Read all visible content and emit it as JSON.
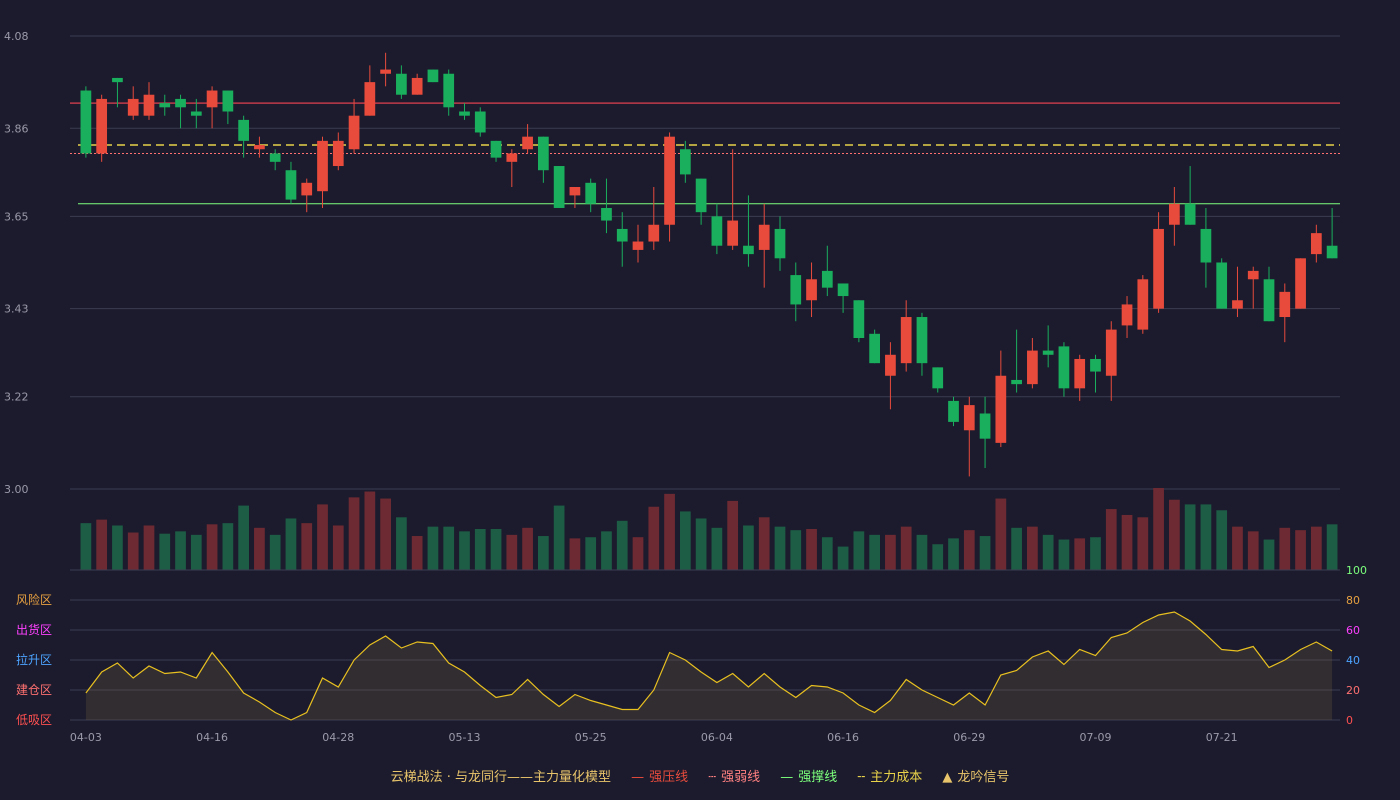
{
  "chart_data": {
    "type": "candlestick",
    "x_ticks": [
      "04-03",
      "04-16",
      "04-28",
      "05-13",
      "05-25",
      "06-04",
      "06-16",
      "06-29",
      "07-09",
      "07-21"
    ],
    "y_ticks": [
      "4.08",
      "3.86",
      "3.65",
      "3.43",
      "3.22",
      "3.00"
    ],
    "ylim": [
      3.0,
      4.08
    ],
    "candles": [
      [
        3.95,
        3.8,
        3.96,
        3.79
      ],
      [
        3.8,
        3.93,
        3.94,
        3.78
      ],
      [
        3.98,
        3.97,
        3.98,
        3.91
      ],
      [
        3.89,
        3.93,
        3.96,
        3.88
      ],
      [
        3.89,
        3.94,
        3.97,
        3.88
      ],
      [
        3.92,
        3.91,
        3.94,
        3.89
      ],
      [
        3.93,
        3.91,
        3.94,
        3.86
      ],
      [
        3.9,
        3.89,
        3.93,
        3.86
      ],
      [
        3.91,
        3.95,
        3.96,
        3.86
      ],
      [
        3.95,
        3.9,
        3.95,
        3.87
      ],
      [
        3.88,
        3.83,
        3.89,
        3.79
      ],
      [
        3.81,
        3.82,
        3.84,
        3.79
      ],
      [
        3.8,
        3.78,
        3.81,
        3.76
      ],
      [
        3.76,
        3.69,
        3.78,
        3.68
      ],
      [
        3.7,
        3.73,
        3.74,
        3.66
      ],
      [
        3.71,
        3.83,
        3.84,
        3.67
      ],
      [
        3.77,
        3.83,
        3.85,
        3.76
      ],
      [
        3.81,
        3.89,
        3.93,
        3.8
      ],
      [
        3.89,
        3.97,
        4.01,
        3.89
      ],
      [
        3.99,
        4.0,
        4.04,
        3.96
      ],
      [
        3.99,
        3.94,
        4.01,
        3.93
      ],
      [
        3.94,
        3.98,
        3.99,
        3.94
      ],
      [
        4.0,
        3.97,
        4.0,
        3.97
      ],
      [
        3.99,
        3.91,
        4.0,
        3.89
      ],
      [
        3.9,
        3.89,
        3.92,
        3.88
      ],
      [
        3.9,
        3.85,
        3.91,
        3.84
      ],
      [
        3.83,
        3.79,
        3.83,
        3.78
      ],
      [
        3.78,
        3.8,
        3.81,
        3.72
      ],
      [
        3.81,
        3.84,
        3.87,
        3.8
      ],
      [
        3.84,
        3.76,
        3.84,
        3.73
      ],
      [
        3.77,
        3.67,
        3.77,
        3.67
      ],
      [
        3.7,
        3.72,
        3.72,
        3.67
      ],
      [
        3.73,
        3.68,
        3.74,
        3.66
      ],
      [
        3.67,
        3.64,
        3.74,
        3.61
      ],
      [
        3.62,
        3.59,
        3.66,
        3.53
      ],
      [
        3.57,
        3.59,
        3.63,
        3.54
      ],
      [
        3.59,
        3.63,
        3.72,
        3.57
      ],
      [
        3.63,
        3.84,
        3.85,
        3.59
      ],
      [
        3.81,
        3.75,
        3.83,
        3.73
      ],
      [
        3.74,
        3.66,
        3.74,
        3.63
      ],
      [
        3.65,
        3.58,
        3.68,
        3.56
      ],
      [
        3.58,
        3.64,
        3.81,
        3.57
      ],
      [
        3.58,
        3.56,
        3.7,
        3.53
      ],
      [
        3.57,
        3.63,
        3.68,
        3.48
      ],
      [
        3.62,
        3.55,
        3.65,
        3.52
      ],
      [
        3.51,
        3.44,
        3.54,
        3.4
      ],
      [
        3.45,
        3.5,
        3.54,
        3.41
      ],
      [
        3.52,
        3.48,
        3.58,
        3.46
      ],
      [
        3.49,
        3.46,
        3.49,
        3.42
      ],
      [
        3.45,
        3.36,
        3.45,
        3.35
      ],
      [
        3.37,
        3.3,
        3.38,
        3.3
      ],
      [
        3.27,
        3.32,
        3.35,
        3.19
      ],
      [
        3.3,
        3.41,
        3.45,
        3.28
      ],
      [
        3.41,
        3.3,
        3.42,
        3.27
      ],
      [
        3.29,
        3.24,
        3.29,
        3.23
      ],
      [
        3.21,
        3.16,
        3.22,
        3.15
      ],
      [
        3.14,
        3.2,
        3.22,
        3.03
      ],
      [
        3.18,
        3.12,
        3.22,
        3.05
      ],
      [
        3.11,
        3.27,
        3.33,
        3.1
      ],
      [
        3.26,
        3.25,
        3.38,
        3.23
      ],
      [
        3.25,
        3.33,
        3.36,
        3.24
      ],
      [
        3.33,
        3.32,
        3.39,
        3.29
      ],
      [
        3.34,
        3.24,
        3.35,
        3.22
      ],
      [
        3.24,
        3.31,
        3.32,
        3.21
      ],
      [
        3.31,
        3.28,
        3.32,
        3.23
      ],
      [
        3.27,
        3.38,
        3.4,
        3.21
      ],
      [
        3.39,
        3.44,
        3.46,
        3.36
      ],
      [
        3.38,
        3.5,
        3.51,
        3.37
      ],
      [
        3.43,
        3.62,
        3.66,
        3.42
      ],
      [
        3.63,
        3.68,
        3.72,
        3.58
      ],
      [
        3.68,
        3.63,
        3.77,
        3.63
      ],
      [
        3.62,
        3.54,
        3.67,
        3.48
      ],
      [
        3.54,
        3.43,
        3.55,
        3.43
      ],
      [
        3.43,
        3.45,
        3.53,
        3.41
      ],
      [
        3.5,
        3.52,
        3.53,
        3.43
      ],
      [
        3.5,
        3.4,
        3.53,
        3.4
      ],
      [
        3.41,
        3.47,
        3.49,
        3.35
      ],
      [
        3.43,
        3.55,
        3.55,
        3.43
      ],
      [
        3.56,
        3.61,
        3.63,
        3.54
      ],
      [
        3.58,
        3.55,
        3.67,
        3.55
      ]
    ],
    "volumes": [
      40,
      43,
      38,
      32,
      38,
      31,
      33,
      30,
      39,
      40,
      55,
      36,
      30,
      44,
      40,
      56,
      38,
      62,
      67,
      61,
      45,
      29,
      37,
      37,
      33,
      35,
      35,
      30,
      36,
      29,
      55,
      27,
      28,
      33,
      42,
      28,
      54,
      65,
      50,
      44,
      36,
      59,
      38,
      45,
      37,
      34,
      35,
      28,
      20,
      33,
      30,
      30,
      37,
      30,
      22,
      27,
      34,
      29,
      61,
      36,
      37,
      30,
      26,
      27,
      28,
      52,
      47,
      45,
      70,
      60,
      56,
      56,
      51,
      37,
      33,
      26,
      36,
      34,
      37,
      39
    ],
    "signal_line": [
      18,
      32,
      38,
      28,
      36,
      31,
      32,
      28,
      45,
      32,
      18,
      12,
      5,
      0,
      5,
      28,
      22,
      40,
      50,
      56,
      48,
      52,
      51,
      38,
      32,
      23,
      15,
      17,
      27,
      17,
      9,
      17,
      13,
      10,
      7,
      7,
      20,
      45,
      40,
      32,
      25,
      31,
      22,
      31,
      22,
      15,
      23,
      22,
      18,
      10,
      5,
      13,
      27,
      20,
      15,
      10,
      18,
      10,
      30,
      33,
      42,
      46,
      37,
      47,
      43,
      55,
      58,
      65,
      70,
      72,
      66,
      57,
      47,
      46,
      49,
      35,
      40,
      47,
      52,
      46
    ],
    "lines": {
      "resist": 3.92,
      "weak": 3.8,
      "support": 3.68,
      "cost": 3.82
    },
    "zones": [
      "风险区",
      "出货区",
      "拉升区",
      "建仓区",
      "低吸区"
    ],
    "osc_ticks": [
      "100",
      "80",
      "60",
      "40",
      "20",
      "0"
    ],
    "legend": {
      "title": "云梯战法 · 与龙同行——主力量化模型",
      "items": [
        "强压线",
        "强弱线",
        "强撑线",
        "主力成本",
        "龙吟信号"
      ],
      "colors": [
        "#e84b3c",
        "#ff8080",
        "#7cff7c",
        "#e8d24a",
        "#e8c46a"
      ]
    },
    "colors": {
      "up": "#e84b3c",
      "down": "#1aaf5d",
      "up_vol": "#6e2a32",
      "down_vol": "#1d5c45",
      "grid": "#3c3c52",
      "axis_text": "#9a9aaa",
      "signal": "#e8c020"
    }
  }
}
